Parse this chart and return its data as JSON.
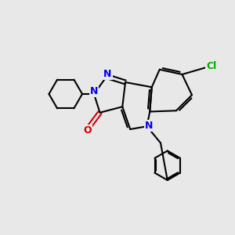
{
  "bg_color": "#e8e8e8",
  "bond_color": "#000000",
  "n_color": "#0000ee",
  "o_color": "#cc0000",
  "cl_color": "#00aa00",
  "bond_lw": 1.5,
  "figsize": [
    3.0,
    3.0
  ],
  "dpi": 100,
  "xlim": [
    -1,
    11
  ],
  "ylim": [
    -1,
    11
  ]
}
